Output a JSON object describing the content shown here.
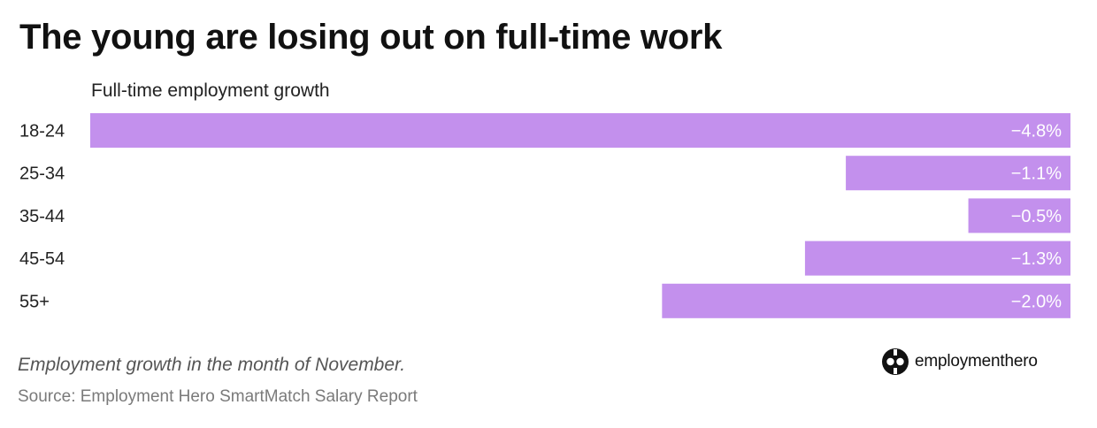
{
  "title": "The young are losing out on full-time work",
  "subtitle": "Full-time employment growth",
  "note": "Employment growth in the month of November.",
  "source": "Source: Employment Hero SmartMatch Salary Report",
  "logo": {
    "icon": "employment-hero-logo-icon",
    "text": "employmenthero"
  },
  "colors": {
    "bar": "#c390ed",
    "bar_label": "#ffffff",
    "axis_label": "#222222"
  },
  "chart_data": {
    "type": "bar",
    "orientation": "horizontal",
    "categories": [
      "18-24",
      "25-34",
      "35-44",
      "45-54",
      "55+"
    ],
    "values": [
      -4.8,
      -1.1,
      -0.5,
      -1.3,
      -2.0
    ],
    "value_labels": [
      "−4.8%",
      "−1.1%",
      "−0.5%",
      "−1.3%",
      "−2.0%"
    ],
    "unit": "%",
    "xlim": [
      -4.8,
      0
    ],
    "grid": false,
    "legend": "none"
  }
}
